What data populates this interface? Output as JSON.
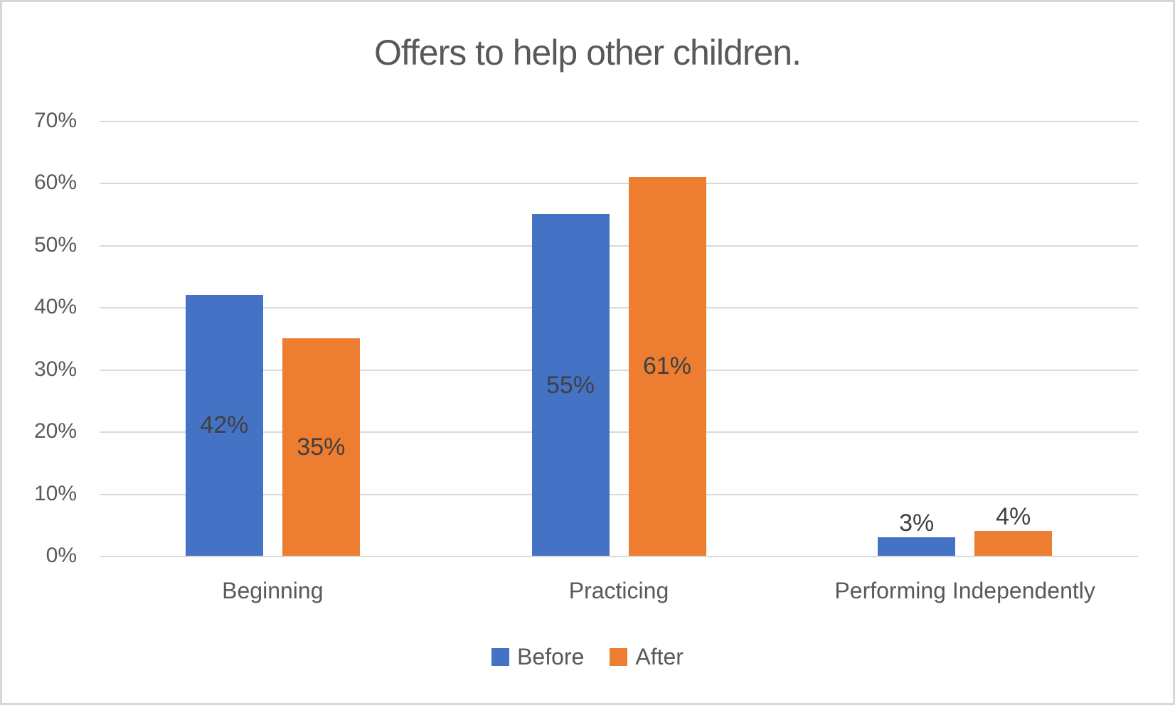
{
  "chart_data": {
    "type": "bar",
    "title": "Offers to help other children.",
    "categories": [
      "Beginning",
      "Practicing",
      "Performing Independently"
    ],
    "series": [
      {
        "name": "Before",
        "color": "#4472C4",
        "values": [
          42,
          55,
          3
        ],
        "labels": [
          "42%",
          "55%",
          "3%"
        ]
      },
      {
        "name": "After",
        "color": "#ED7D31",
        "values": [
          35,
          61,
          4
        ],
        "labels": [
          "35%",
          "61%",
          "4%"
        ]
      }
    ],
    "y_axis": {
      "min": 0,
      "max": 70,
      "step": 10,
      "tick_labels": [
        "0%",
        "10%",
        "20%",
        "30%",
        "40%",
        "50%",
        "60%",
        "70%"
      ]
    },
    "ylim": [
      0,
      70
    ],
    "grid": true,
    "legend": {
      "position": "bottom",
      "entries": [
        "Before",
        "After"
      ]
    },
    "styles": {
      "background": "#FFFFFF",
      "border_color": "#D7D7D7",
      "gridline_color": "#D9D9D9",
      "title_color": "#595959",
      "axis_text_color": "#595959",
      "data_label_color": "#404040"
    }
  }
}
